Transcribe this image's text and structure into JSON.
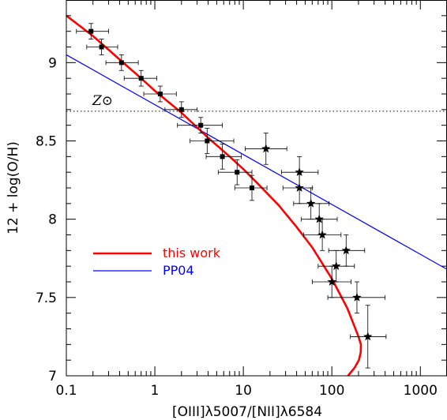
{
  "chart_data": {
    "type": "scatter",
    "title": "",
    "xlabel": "[OIII]λ5007/[NII]λ6584",
    "ylabel": "12 + log(O/H)",
    "xscale": "log",
    "xlim": [
      0.1,
      2000
    ],
    "ylim": [
      7,
      9.4
    ],
    "x_ticks": [
      {
        "value": 0.1,
        "label": "0.1"
      },
      {
        "value": 1,
        "label": "1"
      },
      {
        "value": 10,
        "label": "10"
      },
      {
        "value": 100,
        "label": "100"
      },
      {
        "value": 1000,
        "label": "1000"
      }
    ],
    "y_ticks": [
      {
        "value": 7,
        "label": "7"
      },
      {
        "value": 7.5,
        "label": "7.5"
      },
      {
        "value": 8,
        "label": "8"
      },
      {
        "value": 8.5,
        "label": "8.5"
      },
      {
        "value": 9,
        "label": "9"
      }
    ],
    "solar_line": {
      "y": 8.69,
      "label": "Z⊙",
      "style": "dotted"
    },
    "squares": [
      {
        "x": 0.19,
        "y": 9.2,
        "xerr": [
          0.13,
          0.3
        ],
        "yerr": 0.05
      },
      {
        "x": 0.25,
        "y": 9.1,
        "xerr": [
          0.17,
          0.38
        ],
        "yerr": 0.05
      },
      {
        "x": 0.42,
        "y": 9.0,
        "xerr": [
          0.28,
          0.65
        ],
        "yerr": 0.05
      },
      {
        "x": 0.7,
        "y": 8.9,
        "xerr": [
          0.45,
          1.05
        ],
        "yerr": 0.05
      },
      {
        "x": 1.15,
        "y": 8.8,
        "xerr": [
          0.75,
          1.75
        ],
        "yerr": 0.05
      },
      {
        "x": 2.0,
        "y": 8.7,
        "xerr": [
          1.3,
          3.0
        ],
        "yerr": 0.05
      },
      {
        "x": 3.3,
        "y": 8.6,
        "xerr": [
          1.8,
          5.8
        ],
        "yerr": 0.05
      },
      {
        "x": 3.9,
        "y": 8.5,
        "xerr": [
          2.5,
          7.8
        ],
        "yerr": 0.08
      },
      {
        "x": 5.8,
        "y": 8.4,
        "xerr": [
          3.8,
          9.5
        ],
        "yerr": 0.08
      },
      {
        "x": 8.5,
        "y": 8.3,
        "xerr": [
          5.2,
          12.5
        ],
        "yerr": 0.08
      },
      {
        "x": 12.5,
        "y": 8.2,
        "xerr": [
          8.0,
          18.5
        ],
        "yerr": 0.08
      }
    ],
    "stars": [
      {
        "x": 18.0,
        "y": 8.45,
        "xerr": [
          10.5,
          31.0
        ],
        "yerr": 0.1
      },
      {
        "x": 43.0,
        "y": 8.3,
        "xerr": [
          27.0,
          70.0
        ],
        "yerr": 0.1
      },
      {
        "x": 43.0,
        "y": 8.2,
        "xerr": [
          28.0,
          60.0
        ],
        "yerr": 0.1
      },
      {
        "x": 58.0,
        "y": 8.1,
        "xerr": [
          37.0,
          93.0
        ],
        "yerr": 0.1
      },
      {
        "x": 72.0,
        "y": 8.0,
        "xerr": [
          45.0,
          115.0
        ],
        "yerr": 0.1
      },
      {
        "x": 78.0,
        "y": 7.9,
        "xerr": [
          48.0,
          127.0
        ],
        "yerr": 0.1
      },
      {
        "x": 145.0,
        "y": 7.8,
        "xerr": [
          92.0,
          235.0
        ],
        "yerr": 0.1
      },
      {
        "x": 112.0,
        "y": 7.7,
        "xerr": [
          70.0,
          180.0
        ],
        "yerr": 0.1
      },
      {
        "x": 100.0,
        "y": 7.6,
        "xerr": [
          60.0,
          165.0
        ],
        "yerr": 0.1
      },
      {
        "x": 192.0,
        "y": 7.5,
        "xerr": [
          90.0,
          400.0
        ],
        "yerr": 0.1
      },
      {
        "x": 255.0,
        "y": 7.25,
        "xerr": [
          162.0,
          410.0
        ],
        "yerr": 0.2
      }
    ],
    "series": [
      {
        "name": "this work",
        "color": "#ff0000",
        "curve": [
          [
            0.1,
            9.3
          ],
          [
            0.2,
            9.17
          ],
          [
            0.4,
            9.02
          ],
          [
            0.7,
            8.9
          ],
          [
            1.0,
            8.82
          ],
          [
            2.0,
            8.68
          ],
          [
            4.0,
            8.52
          ],
          [
            7.0,
            8.4
          ],
          [
            10.0,
            8.32
          ],
          [
            15.0,
            8.22
          ],
          [
            25.0,
            8.09
          ],
          [
            40.0,
            7.95
          ],
          [
            60.0,
            7.82
          ],
          [
            100.0,
            7.62
          ],
          [
            150.0,
            7.43
          ],
          [
            200.0,
            7.25
          ],
          [
            213.0,
            7.2
          ],
          [
            212.0,
            7.15
          ],
          [
            202.0,
            7.1
          ],
          [
            180.0,
            7.05
          ],
          [
            152.0,
            7.0
          ]
        ]
      },
      {
        "name": "PP04",
        "color": "#0000ff",
        "line": [
          [
            0.1,
            9.05
          ],
          [
            2000.0,
            7.68
          ]
        ]
      }
    ],
    "legend_position": "lower-left",
    "grid": false
  }
}
